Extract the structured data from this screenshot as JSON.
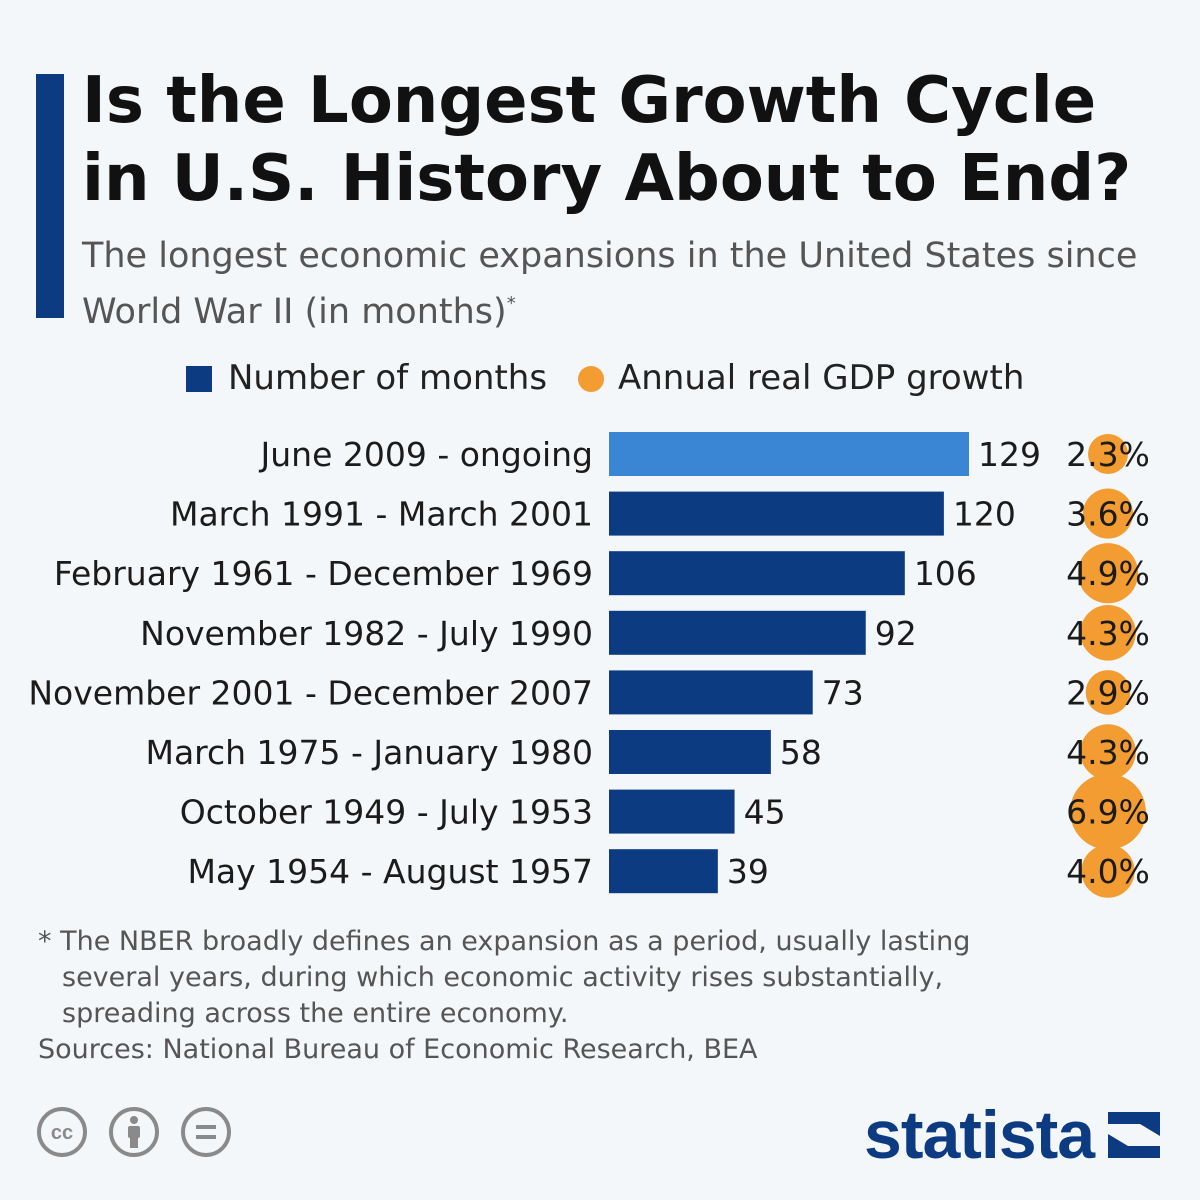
{
  "header": {
    "title": "Is the Longest Growth Cycle in U.S. History About to End?",
    "subtitle": "The longest economic expansions in the United States since World War II (in months)",
    "subtitle_note_marker": "*"
  },
  "legend": {
    "months_label": "Number of months",
    "gdp_label": "Annual real GDP growth"
  },
  "chart_data": {
    "type": "bar",
    "orientation": "horizontal",
    "title": "The longest economic expansions in the United States since World War II (in months)",
    "categories": [
      "June 2009 - ongoing",
      "March 1991 - March 2001",
      "February 1961 - December 1969",
      "November 1982 - July 1990",
      "November 2001 - December 2007",
      "March 1975 - January 1980",
      "October 1949 - July 1953",
      "May 1954 - August 1957"
    ],
    "series": [
      {
        "name": "Number of months",
        "values": [
          129,
          120,
          106,
          92,
          73,
          58,
          45,
          39
        ]
      },
      {
        "name": "Annual real GDP growth",
        "values": [
          2.3,
          3.6,
          4.9,
          4.3,
          2.9,
          4.3,
          6.9,
          4.0
        ],
        "labels": [
          "2.3%",
          "3.6%",
          "4.9%",
          "4.3%",
          "2.9%",
          "4.3%",
          "6.9%",
          "4.0%"
        ]
      }
    ],
    "highlight_index": 0,
    "xlim": [
      0,
      129
    ],
    "colors": {
      "bar": "#0d3b82",
      "bar_highlight": "#3b86d4",
      "dot": "#f39c32"
    }
  },
  "footer": {
    "footnote_lines": [
      "* The NBER broadly defines an expansion as a period, usually lasting",
      "several years, during which economic activity rises substantially,",
      "spreading across the entire economy."
    ],
    "sources": "Sources: National Bureau of Economic Research, BEA",
    "logo_text": "statista"
  },
  "icons": {
    "license": [
      "creative-commons-icon",
      "attribution-icon",
      "no-derivatives-icon"
    ],
    "cc_text": "cc"
  }
}
